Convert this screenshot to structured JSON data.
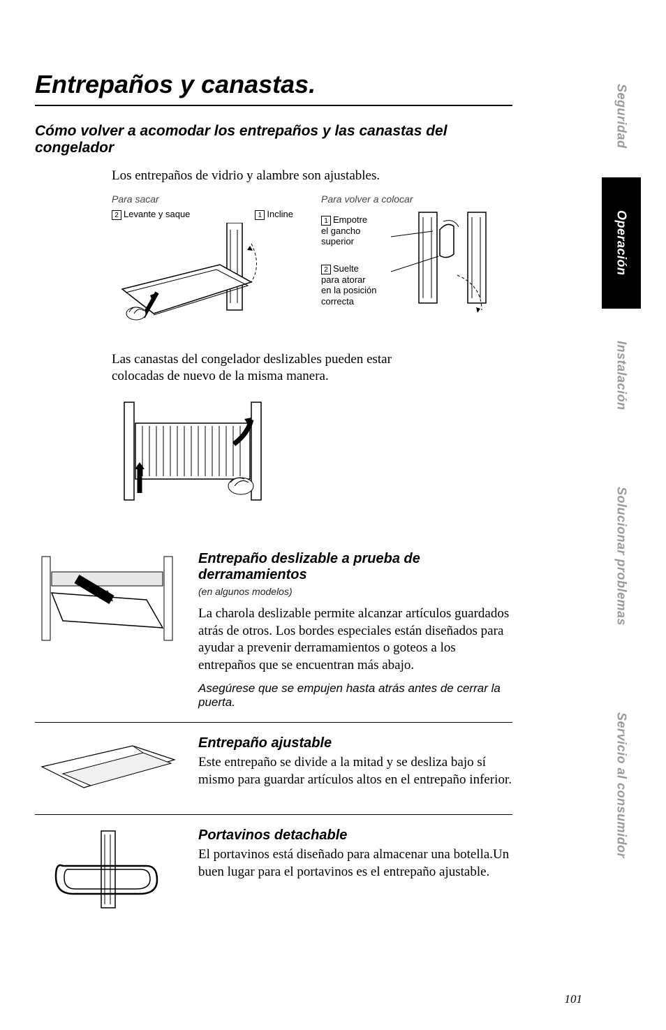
{
  "page": {
    "number": "101",
    "main_title": "Entrepaños y canastas.",
    "section_title": "Cómo volver a acomodar los entrepaños y las canastas del congelador",
    "intro_text": "Los entrepaños de vidrio y alambre son ajustables.",
    "basket_text": "Las canastas del congelador deslizables pueden estar colocadas de nuevo de la misma manera."
  },
  "diagrams": {
    "remove": {
      "caption": "Para sacar",
      "step1_num": "1",
      "step1_label": "Incline",
      "step2_num": "2",
      "step2_label": "Levante y saque"
    },
    "replace": {
      "caption": "Para volver a colocar",
      "step1_num": "1",
      "step1_label_l1": "Empotre",
      "step1_label_l2": "el gancho",
      "step1_label_l3": "superior",
      "step2_num": "2",
      "step2_label_l1": "Suelte",
      "step2_label_l2": "para atorar",
      "step2_label_l3": "en la posición",
      "step2_label_l4": "correcta"
    }
  },
  "sections": {
    "spillproof": {
      "heading": "Entrepaño deslizable a prueba de derramamientos",
      "models": "(en algunos modelos)",
      "body": "La charola deslizable permite alcanzar artículos guardados atrás de otros. Los bordes especiales están diseñados para ayudar a prevenir derramamientos o goteos a los entrepaños que se encuentran más abajo.",
      "note": "Asegúrese que se empujen hasta atrás antes de cerrar la puerta."
    },
    "adjustable": {
      "heading": "Entrepaño ajustable",
      "body": "Este entrepaño se divide a la mitad y se desliza bajo sí mismo para guardar artículos altos en el entrepaño inferior."
    },
    "winerack": {
      "heading": "Portavinos detachable",
      "body": "El portavinos está diseñado para almacenar una botella.Un buen lugar para el portavinos es el entrepaño ajustable."
    }
  },
  "tabs": {
    "t1": "Seguridad",
    "t2": "Operación",
    "t3": "Instalación",
    "t4": "Solucionar problemas",
    "t5": "Servicio al consumidor"
  },
  "style": {
    "tab_heights": [
      176,
      188,
      192,
      326,
      330
    ],
    "active_tab_index": 1
  }
}
